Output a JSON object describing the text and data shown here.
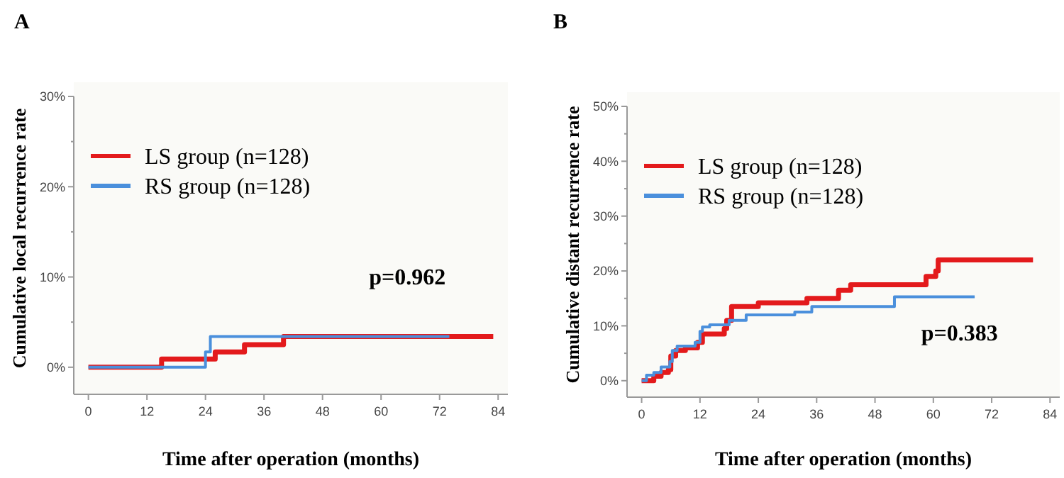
{
  "chart_data": [
    {
      "type": "step",
      "title": "A",
      "xlabel": "Time after operation (months)",
      "ylabel": "Cumulative local recurrence rate",
      "xlim": [
        -3,
        86
      ],
      "xticks": [
        0,
        12,
        24,
        36,
        48,
        60,
        72,
        84
      ],
      "ylim": [
        -3,
        30
      ],
      "yticks": [
        {
          "value": 0,
          "label": "0%"
        },
        {
          "value": 5,
          "label": null
        },
        {
          "value": 10,
          "label": "10%"
        },
        {
          "value": 15,
          "label": null
        },
        {
          "value": 20,
          "label": "20%"
        },
        {
          "value": 25,
          "label": null
        },
        {
          "value": 30,
          "label": "30%"
        }
      ],
      "legend": "top left",
      "grid": false,
      "annotations": [
        "p=0.962"
      ],
      "series": [
        {
          "name": "LS group (n=128)",
          "color": "#e31a1c",
          "x": [
            0,
            15,
            26,
            32,
            40,
            83
          ],
          "values": [
            0,
            0.9,
            1.7,
            2.5,
            3.4,
            3.4
          ]
        },
        {
          "name": "RS group (n=128)",
          "color": "#4a8fdc",
          "x": [
            0,
            24,
            25,
            74
          ],
          "values": [
            0,
            1.7,
            3.4,
            3.4
          ]
        }
      ]
    },
    {
      "type": "step",
      "title": "B",
      "xlabel": "Time after operation (months)",
      "ylabel": "Cumulative distant recurrence rate",
      "xlim": [
        -3,
        86
      ],
      "xticks": [
        0,
        12,
        24,
        36,
        48,
        60,
        72,
        84
      ],
      "ylim": [
        -3,
        50
      ],
      "yticks": [
        {
          "value": 0,
          "label": "0%"
        },
        {
          "value": 5,
          "label": null
        },
        {
          "value": 10,
          "label": "10%"
        },
        {
          "value": 15,
          "label": null
        },
        {
          "value": 20,
          "label": "20%"
        },
        {
          "value": 25,
          "label": null
        },
        {
          "value": 30,
          "label": "30%"
        },
        {
          "value": 35,
          "label": null
        },
        {
          "value": 40,
          "label": "40%"
        },
        {
          "value": 45,
          "label": null
        },
        {
          "value": 50,
          "label": "50%"
        }
      ],
      "legend": "top left",
      "grid": false,
      "annotations": [
        "p=0.383"
      ],
      "series": [
        {
          "name": "LS group (n=128)",
          "color": "#e31a1c",
          "x": [
            0,
            2.5,
            4,
            5.5,
            6,
            7,
            9,
            11.5,
            12.5,
            17,
            17.5,
            18.5,
            24,
            34,
            40.5,
            43,
            58.5,
            60.5,
            61,
            80.5
          ],
          "values": [
            0,
            0.8,
            1.5,
            2,
            4.5,
            5.5,
            6,
            7,
            8.5,
            9.5,
            11,
            13.5,
            14.2,
            15,
            16.5,
            17.5,
            19,
            20,
            22,
            22
          ]
        },
        {
          "name": "RS group (n=128)",
          "color": "#4a8fdc",
          "x": [
            0,
            1,
            2.5,
            4,
            5.8,
            6.3,
            7.3,
            11,
            12,
            12.5,
            14,
            18,
            21.5,
            31.5,
            35,
            52,
            68.5
          ],
          "values": [
            0,
            1,
            1.5,
            2.5,
            3.5,
            5.5,
            6.3,
            7,
            9,
            9.8,
            10.2,
            11,
            12,
            12.5,
            13.5,
            15.3,
            15.3
          ]
        }
      ]
    }
  ]
}
